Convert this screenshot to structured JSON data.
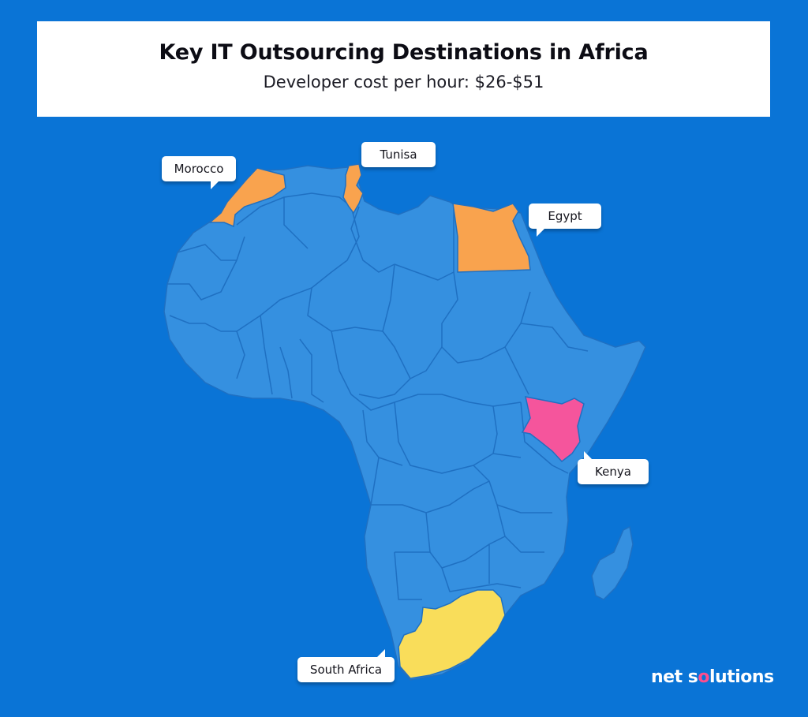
{
  "header": {
    "title": "Key IT Outsourcing Destinations in Africa",
    "subtitle": "Developer cost per hour: $26-$51"
  },
  "labels": {
    "morocco": "Morocco",
    "tunisia": "Tunisa",
    "egypt": "Egypt",
    "kenya": "Kenya",
    "south_africa": "South Africa"
  },
  "brand": {
    "prefix": "net s",
    "dot": "o",
    "suffix": "lutions"
  },
  "colors": {
    "background": "#0a74d6",
    "land": "#3590e0",
    "borders": "#1f70c2",
    "highlight_orange": "#f9a34e",
    "highlight_pink": "#f5559c",
    "highlight_yellow": "#f9dd5a"
  }
}
